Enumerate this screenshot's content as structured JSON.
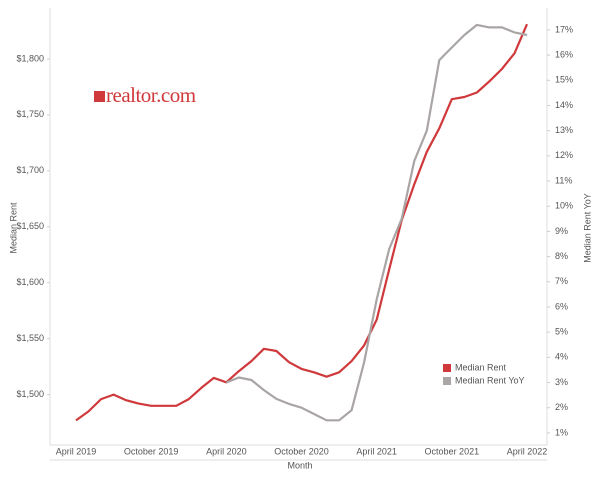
{
  "chart_data": {
    "type": "line",
    "logo": "realtor.com",
    "x_label": "Month",
    "y_label": "Median Rent",
    "y2_label": "Median Rent YoY",
    "categories": [
      "April 2019",
      null,
      null,
      null,
      null,
      null,
      "October 2019",
      null,
      null,
      null,
      null,
      null,
      "April 2020",
      null,
      null,
      null,
      null,
      null,
      "October 2020",
      null,
      null,
      null,
      null,
      null,
      "April 2021",
      null,
      null,
      null,
      null,
      null,
      "October 2021",
      null,
      null,
      null,
      null,
      null,
      "April 2022"
    ],
    "series": [
      {
        "name": "Median Rent",
        "color": "#d0393b",
        "values": [
          1477,
          1485,
          1496,
          1500,
          1495,
          1492,
          1490,
          1490,
          1490,
          1496,
          1506,
          1515,
          1511,
          1521,
          1530,
          1541,
          1539,
          1529,
          1523,
          1520,
          1516,
          1520,
          1530,
          1544,
          1567,
          1612,
          1656,
          1688,
          1717,
          1738,
          1764,
          1766,
          1770,
          1780,
          1791,
          1805,
          1831
        ]
      },
      {
        "name": "Median Rent YoY",
        "color": "#aaa5a5",
        "axis": "y2",
        "values": [
          null,
          null,
          null,
          null,
          null,
          null,
          null,
          null,
          null,
          null,
          null,
          null,
          3.0,
          3.2,
          3.1,
          2.7,
          2.35,
          2.15,
          2.0,
          1.75,
          1.5,
          1.5,
          1.9,
          3.8,
          6.3,
          8.3,
          9.5,
          11.8,
          13.0,
          15.8,
          16.3,
          16.8,
          17.2,
          17.1,
          17.1,
          16.9,
          16.8
        ]
      }
    ],
    "ylim": [
      1455,
      1845.5
    ],
    "yticks": [
      {
        "value": 1500,
        "label": "$1,500"
      },
      {
        "value": 1550,
        "label": "$1,550"
      },
      {
        "value": 1600,
        "label": "$1,600"
      },
      {
        "value": 1650,
        "label": "$1,650"
      },
      {
        "value": 1700,
        "label": "$1,700"
      },
      {
        "value": 1750,
        "label": "$1,750"
      },
      {
        "value": 1800,
        "label": "$1,800"
      }
    ],
    "y2lim": [
      0.52,
      17.87
    ],
    "y2ticks": [
      {
        "value": 1,
        "label": "1%"
      },
      {
        "value": 2,
        "label": "2%"
      },
      {
        "value": 3,
        "label": "3%"
      },
      {
        "value": 4,
        "label": "4%"
      },
      {
        "value": 5,
        "label": "5%"
      },
      {
        "value": 6,
        "label": "6%"
      },
      {
        "value": 7,
        "label": "7%"
      },
      {
        "value": 8,
        "label": "8%"
      },
      {
        "value": 9,
        "label": "9%"
      },
      {
        "value": 10,
        "label": "10%"
      },
      {
        "value": 11,
        "label": "11%"
      },
      {
        "value": 12,
        "label": "12%"
      },
      {
        "value": 13,
        "label": "13%"
      },
      {
        "value": 14,
        "label": "14%"
      },
      {
        "value": 15,
        "label": "15%"
      },
      {
        "value": 16,
        "label": "16%"
      },
      {
        "value": 17,
        "label": "17%"
      }
    ],
    "legend": "lower right",
    "grid": false
  }
}
